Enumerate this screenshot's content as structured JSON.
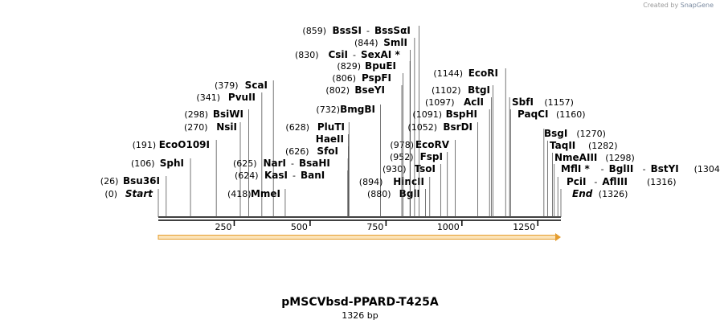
{
  "branding": {
    "created_by": "Created by",
    "product": "SnapGene"
  },
  "plasmid": {
    "name": "pMSCVbsd-PPARD-T425A",
    "length_label": "1326 bp"
  },
  "chart_data": {
    "type": "linear-restriction-map",
    "length": 1326,
    "ticks": [
      {
        "value": 250,
        "label": "250"
      },
      {
        "value": 500,
        "label": "500"
      },
      {
        "value": 750,
        "label": "750"
      },
      {
        "value": 1000,
        "label": "1000"
      },
      {
        "value": 1250,
        "label": "1250"
      }
    ],
    "features": [
      {
        "name": "",
        "start": 0,
        "end": 1326,
        "color": "#f4a83a"
      }
    ],
    "sites": [
      {
        "label": "Start",
        "pos": 0,
        "pos_text": "(0)",
        "italic": true
      },
      {
        "label": "Bsu36I",
        "pos": 26,
        "pos_text": "(26)"
      },
      {
        "label": "SphI",
        "pos": 106,
        "pos_text": "(106)"
      },
      {
        "label": "EcoO109I",
        "pos": 191,
        "pos_text": "(191)"
      },
      {
        "label": "NsiI",
        "pos": 270,
        "pos_text": "(270)"
      },
      {
        "label": "BsiWI",
        "pos": 298,
        "pos_text": "(298)"
      },
      {
        "label": "PvuII",
        "pos": 341,
        "pos_text": "(341)"
      },
      {
        "label": "ScaI",
        "pos": 379,
        "pos_text": "(379)"
      },
      {
        "label": "MmeI",
        "pos": 418,
        "pos_text": "(418)"
      },
      {
        "label": "KasI",
        "pos": 624,
        "pos_text": "(624)",
        "extra": "BanI"
      },
      {
        "label": "NarI",
        "pos": 625,
        "pos_text": "(625)",
        "extra": "BsaHI"
      },
      {
        "label": "SfoI",
        "pos": 626,
        "pos_text": "(626)"
      },
      {
        "label": "HaeII",
        "pos": 626,
        "pos_text": ""
      },
      {
        "label": "PluTI",
        "pos": 628,
        "pos_text": "(628)"
      },
      {
        "label": "BmgBI",
        "pos": 732,
        "pos_text": "(732)"
      },
      {
        "label": "BglI",
        "pos": 880,
        "pos_text": "(880)"
      },
      {
        "label": "HincII",
        "pos": 894,
        "pos_text": "(894)"
      },
      {
        "label": "TsoI",
        "pos": 930,
        "pos_text": "(930)"
      },
      {
        "label": "FspI",
        "pos": 952,
        "pos_text": "(952)"
      },
      {
        "label": "EcoRV",
        "pos": 978,
        "pos_text": "(978)"
      },
      {
        "label": "BseYI",
        "pos": 802,
        "pos_text": "(802)"
      },
      {
        "label": "PspFI",
        "pos": 806,
        "pos_text": "(806)"
      },
      {
        "label": "BpuEI",
        "pos": 829,
        "pos_text": "(829)"
      },
      {
        "label": "CsiI",
        "pos": 830,
        "pos_text": "(830)",
        "extra": "SexAI *"
      },
      {
        "label": "SmlI",
        "pos": 844,
        "pos_text": "(844)"
      },
      {
        "label": "BssSI",
        "pos": 859,
        "pos_text": "(859)",
        "extra": "BssSαI"
      },
      {
        "label": "BsrDI",
        "pos": 1052,
        "pos_text": "(1052)"
      },
      {
        "label": "BspHI",
        "pos": 1091,
        "pos_text": "(1091)"
      },
      {
        "label": "AclI",
        "pos": 1097,
        "pos_text": "(1097)"
      },
      {
        "label": "BtgI",
        "pos": 1102,
        "pos_text": "(1102)"
      },
      {
        "label": "EcoRI",
        "pos": 1144,
        "pos_text": "(1144)"
      },
      {
        "label": "SbfI",
        "pos": 1157,
        "pos_text": "(1157)"
      },
      {
        "label": "PaqCI",
        "pos": 1160,
        "pos_text": "(1160)"
      },
      {
        "label": "BsgI",
        "pos": 1270,
        "pos_text": "(1270)"
      },
      {
        "label": "TaqII",
        "pos": 1282,
        "pos_text": "(1282)"
      },
      {
        "label": "NmeAIII",
        "pos": 1298,
        "pos_text": "(1298)"
      },
      {
        "label": "MflI *",
        "pos": 1304,
        "pos_text": "(1304)",
        "extra": "BglII",
        "extra2": "BstYI"
      },
      {
        "label": "PciI",
        "pos": 1316,
        "pos_text": "(1316)",
        "extra": "AflIII"
      },
      {
        "label": "End",
        "pos": 1326,
        "pos_text": "(1326)",
        "italic": true
      }
    ]
  }
}
